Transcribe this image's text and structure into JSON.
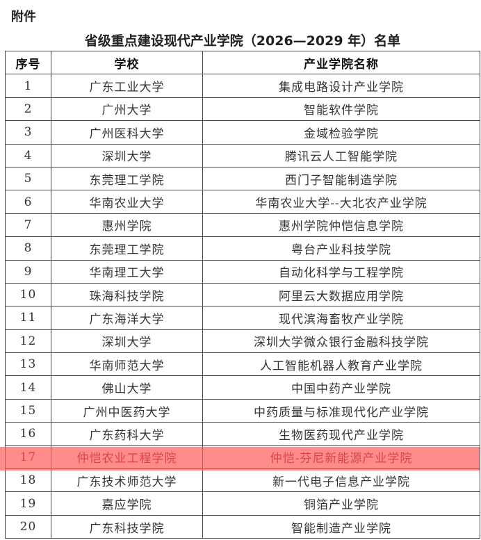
{
  "attachment_label": "附件",
  "title": "省级重点建设现代产业学院（2026—2029 年）名单",
  "table": {
    "headers": [
      "序号",
      "学校",
      "产业学院名称"
    ],
    "highlight_color": "#ff5a5a",
    "highlighted_row": 17,
    "rows": [
      [
        "1",
        "广东工业大学",
        "集成电路设计产业学院"
      ],
      [
        "2",
        "广州大学",
        "智能软件学院"
      ],
      [
        "3",
        "广州医科大学",
        "金域检验学院"
      ],
      [
        "4",
        "深圳大学",
        "腾讯云人工智能学院"
      ],
      [
        "5",
        "东莞理工学院",
        "西门子智能制造学院"
      ],
      [
        "6",
        "华南农业大学",
        "华南农业大学--大北农产业学院"
      ],
      [
        "7",
        "惠州学院",
        "惠州学院仲恺信息学院"
      ],
      [
        "8",
        "东莞理工学院",
        "粤台产业科技学院"
      ],
      [
        "9",
        "华南理工大学",
        "自动化科学与工程学院"
      ],
      [
        "10",
        "珠海科技学院",
        "阿里云大数据应用学院"
      ],
      [
        "11",
        "广东海洋大学",
        "现代滨海畜牧产业学院"
      ],
      [
        "12",
        "深圳大学",
        "深圳大学微众银行金融科技学院"
      ],
      [
        "13",
        "华南师范大学",
        "人工智能机器人教育产业学院"
      ],
      [
        "14",
        "佛山大学",
        "中国中药产业学院"
      ],
      [
        "15",
        "广州中医药大学",
        "中药质量与标准现代化产业学院"
      ],
      [
        "16",
        "广东药科大学",
        "生物医药现代产业学院"
      ],
      [
        "17",
        "仲恺农业工程学院",
        "仲恺-芬尼新能源产业学院"
      ],
      [
        "18",
        "广东技术师范大学",
        "新一代电子信息产业学院"
      ],
      [
        "19",
        "嘉应学院",
        "铜箔产业学院"
      ],
      [
        "20",
        "广东科技学院",
        "智能制造产业学院"
      ]
    ]
  }
}
